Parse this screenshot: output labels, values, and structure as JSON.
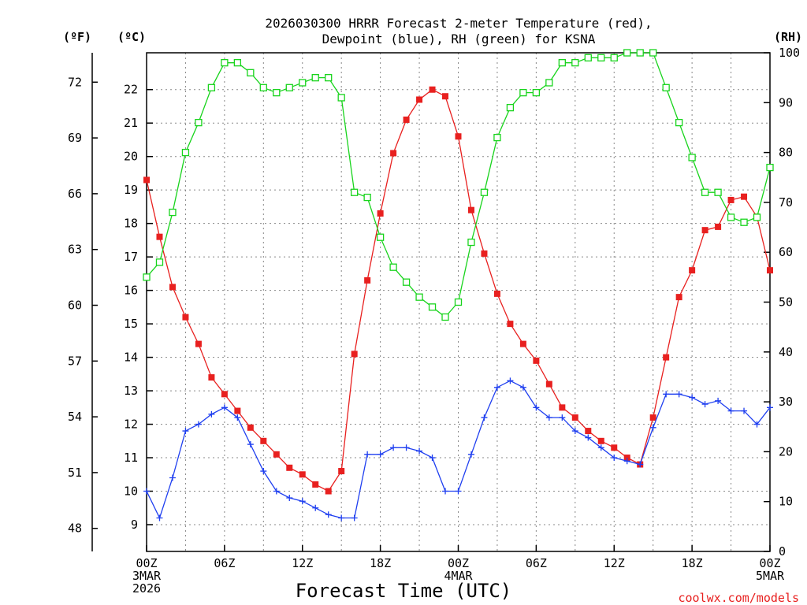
{
  "chart_data": {
    "type": "line",
    "title_line1": "2026030300 HRRR Forecast 2-meter Temperature (red),",
    "title_line2": "Dewpoint (blue), RH (green) for KSNA",
    "xlabel": "Forecast Time (UTC)",
    "credit": "coolwx.com/models",
    "unit_f": "(ºF)",
    "unit_c": "(ºC)",
    "unit_rh": "(RH)",
    "x_ticks": [
      {
        "hour": 0,
        "lines": [
          "00Z",
          "3MAR",
          "2026"
        ]
      },
      {
        "hour": 6,
        "lines": [
          "06Z"
        ]
      },
      {
        "hour": 12,
        "lines": [
          "12Z"
        ]
      },
      {
        "hour": 18,
        "lines": [
          "18Z"
        ]
      },
      {
        "hour": 24,
        "lines": [
          "00Z",
          "4MAR"
        ]
      },
      {
        "hour": 30,
        "lines": [
          "06Z"
        ]
      },
      {
        "hour": 36,
        "lines": [
          "12Z"
        ]
      },
      {
        "hour": 42,
        "lines": [
          "18Z"
        ]
      },
      {
        "hour": 48,
        "lines": [
          "00Z",
          "5MAR"
        ]
      }
    ],
    "xlim": [
      0,
      48
    ],
    "ylim_c": [
      8.2,
      23.1
    ],
    "ylim_rh": [
      0,
      100
    ],
    "c_ticks": [
      "9",
      "10",
      "11",
      "12",
      "13",
      "14",
      "15",
      "16",
      "17",
      "18",
      "19",
      "20",
      "21",
      "22"
    ],
    "f_ticks": [
      "48",
      "51",
      "54",
      "57",
      "60",
      "63",
      "66",
      "69",
      "72"
    ],
    "rh_ticks": [
      "0",
      "10",
      "20",
      "30",
      "40",
      "50",
      "60",
      "70",
      "80",
      "90",
      "100"
    ],
    "grid": true,
    "series": [
      {
        "name": "Temperature",
        "color": "#e8201f",
        "marker": "filled-square",
        "units": "C",
        "values": [
          19.3,
          17.6,
          16.1,
          15.2,
          14.4,
          13.4,
          12.9,
          12.4,
          11.9,
          11.5,
          11.1,
          10.7,
          10.5,
          10.2,
          10.0,
          10.6,
          14.1,
          16.3,
          18.3,
          20.1,
          21.1,
          21.7,
          22.0,
          21.8,
          20.6,
          18.4,
          17.1,
          15.9,
          15.0,
          14.4,
          13.9,
          13.2,
          12.5,
          12.2,
          11.8,
          11.5,
          11.3,
          11.0,
          10.8,
          12.2,
          14.0,
          15.8,
          16.6,
          17.8,
          17.9,
          18.7,
          18.8,
          18.2,
          16.6
        ]
      },
      {
        "name": "Dewpoint",
        "color": "#1f3ff0",
        "marker": "plus",
        "units": "C",
        "values": [
          10.0,
          9.2,
          10.4,
          11.8,
          12.0,
          12.3,
          12.5,
          12.2,
          11.4,
          10.6,
          10.0,
          9.8,
          9.7,
          9.5,
          9.3,
          9.2,
          9.2,
          11.1,
          11.1,
          11.3,
          11.3,
          11.2,
          11.0,
          10.0,
          10.0,
          11.1,
          12.2,
          13.1,
          13.3,
          13.1,
          12.5,
          12.2,
          12.2,
          11.8,
          11.6,
          11.3,
          11.0,
          10.9,
          10.8,
          11.9,
          12.9,
          12.9,
          12.8,
          12.6,
          12.7,
          12.4,
          12.4,
          12.0,
          12.5
        ]
      },
      {
        "name": "RH",
        "color": "#18d41c",
        "marker": "open-square",
        "units": "%",
        "values": [
          55,
          58,
          68,
          80,
          86,
          93,
          98,
          98,
          96,
          93,
          92,
          93,
          94,
          95,
          95,
          91,
          72,
          71,
          63,
          57,
          54,
          51,
          49,
          47,
          50,
          62,
          72,
          83,
          89,
          92,
          92,
          94,
          98,
          98,
          99,
          99,
          99,
          100,
          100,
          100,
          93,
          86,
          79,
          72,
          72,
          67,
          66,
          67,
          77
        ]
      }
    ]
  }
}
